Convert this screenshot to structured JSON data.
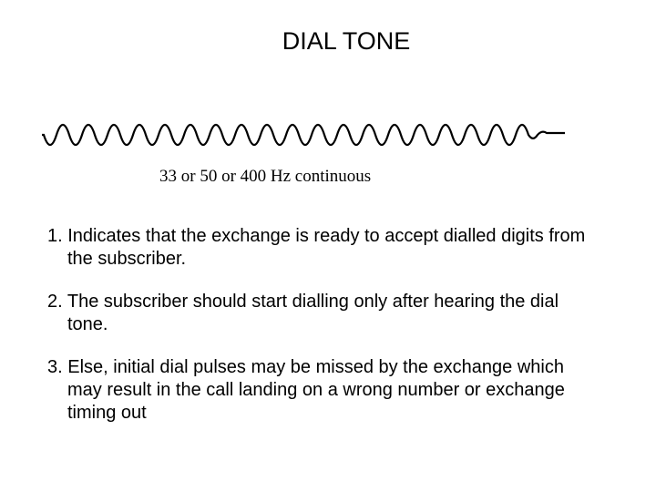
{
  "title": "DIAL TONE",
  "waveform": {
    "cycles": 19,
    "amplitude": 22,
    "centerY": 27,
    "startX": 6,
    "wavelength": 28,
    "endTailLength": 30,
    "strokeColor": "#000000",
    "strokeWidth": 2.2
  },
  "caption": "33 or 50 or 400 Hz continuous",
  "items": [
    "1. Indicates that the exchange is ready to accept dialled digits from the subscriber.",
    "2. The subscriber should start dialling only after hearing the dial tone.",
    "3. Else, initial dial pulses may be missed by the exchange which may result in the call landing on a wrong number or exchange timing out"
  ],
  "colors": {
    "background": "#ffffff",
    "text": "#000000"
  }
}
